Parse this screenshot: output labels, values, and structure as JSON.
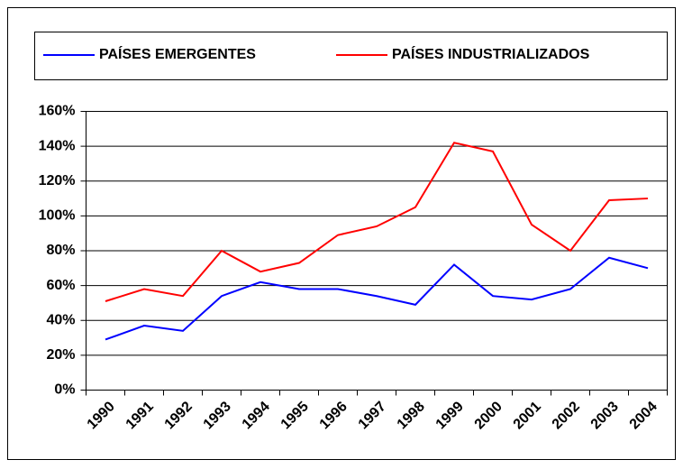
{
  "chart_data": {
    "type": "line",
    "categories": [
      "1990",
      "1991",
      "1992",
      "1993",
      "1994",
      "1995",
      "1996",
      "1997",
      "1998",
      "1999",
      "2000",
      "2001",
      "2002",
      "2003",
      "2004"
    ],
    "series": [
      {
        "name": "PAÍSES EMERGENTES",
        "color": "#0000ff",
        "values": [
          29,
          37,
          34,
          54,
          62,
          58,
          58,
          54,
          49,
          72,
          54,
          52,
          58,
          76,
          70
        ]
      },
      {
        "name": "PAÍSES INDUSTRIALIZADOS",
        "color": "#ff0000",
        "values": [
          51,
          58,
          54,
          80,
          68,
          73,
          89,
          94,
          105,
          142,
          137,
          95,
          80,
          109,
          110
        ]
      }
    ],
    "ylim": [
      0,
      160
    ],
    "yticks": [
      {
        "value": 0,
        "label": "0%"
      },
      {
        "value": 20,
        "label": "20%"
      },
      {
        "value": 40,
        "label": "40%"
      },
      {
        "value": 60,
        "label": "60%"
      },
      {
        "value": 80,
        "label": "80%"
      },
      {
        "value": 100,
        "label": "100%"
      },
      {
        "value": 120,
        "label": "120%"
      },
      {
        "value": 140,
        "label": "140%"
      },
      {
        "value": 160,
        "label": "160%"
      }
    ],
    "grid": true
  }
}
